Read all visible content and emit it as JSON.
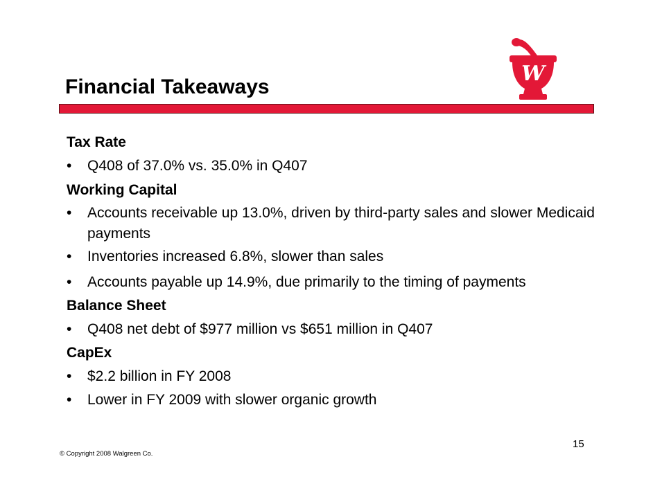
{
  "slide": {
    "title": "Financial Takeaways",
    "page_number": "15",
    "copyright": "© Copyright 2008 Walgreen Co.",
    "logo_letter": "W"
  },
  "sections": [
    {
      "heading": "Tax Rate",
      "bullets": [
        "Q408 of 37.0% vs. 35.0% in Q407"
      ]
    },
    {
      "heading": "Working Capital",
      "bullets": [
        "Accounts receivable up 13.0%, driven by third-party sales and slower Medicaid payments",
        "Inventories increased 6.8%, slower than sales",
        "Accounts payable up 14.9%, due primarily to the timing of payments"
      ]
    },
    {
      "heading": "Balance Sheet",
      "bullets": [
        "Q408 net debt of $977 million vs $651 million in Q407"
      ]
    },
    {
      "heading": "CapEx",
      "bullets": [
        "$2.2 billion in FY 2008",
        "Lower in FY 2009 with slower organic growth"
      ]
    }
  ],
  "colors": {
    "accent": "#e31837",
    "rule_border": "#5a0f14"
  },
  "bullet_symbol": "•"
}
